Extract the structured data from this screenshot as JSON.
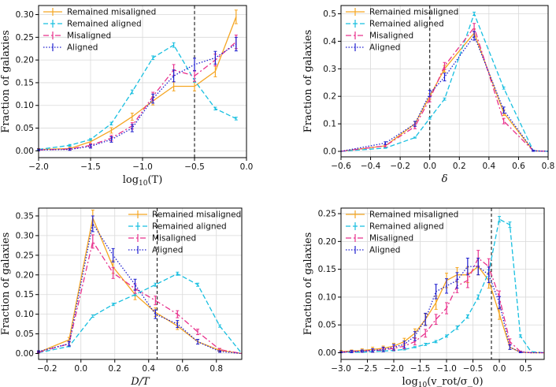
{
  "figure_colors": {
    "remained_misaligned": "#f5a623",
    "remained_aligned": "#17bfe0",
    "misaligned": "#e8308c",
    "aligned": "#1f1fcf",
    "vline": "#000000",
    "grid": "#d9d9d9"
  },
  "chart_data": [
    {
      "type": "line",
      "panel": "top-left",
      "xlabel_main": "log",
      "xlabel_sub": "10",
      "xlabel_rest": "(T)",
      "ylabel": "Fraction of galaxies",
      "xlim": [
        -2.0,
        0.0
      ],
      "ylim": [
        -0.015,
        0.32
      ],
      "xticks": [
        -2.0,
        -1.5,
        -1.0,
        -0.5,
        0.0
      ],
      "xtick_labels": [
        "−2.0",
        "−1.5",
        "−1.0",
        "−0.5",
        "0.0"
      ],
      "yticks": [
        0.0,
        0.05,
        0.1,
        0.15,
        0.2,
        0.25,
        0.3
      ],
      "ytick_labels": [
        "0.00",
        "0.05",
        "0.10",
        "0.15",
        "0.20",
        "0.25",
        "0.30"
      ],
      "vline": -0.5,
      "legend_position": "upper-left",
      "series": [
        {
          "name": "Remained misaligned",
          "key": "remained_misaligned",
          "style": "solid",
          "x": [
            -2.0,
            -1.7,
            -1.5,
            -1.3,
            -1.1,
            -0.9,
            -0.7,
            -0.5,
            -0.3,
            -0.1
          ],
          "y": [
            0.003,
            0.005,
            0.02,
            0.045,
            0.075,
            0.11,
            0.142,
            0.142,
            0.175,
            0.295
          ],
          "err": [
            0.002,
            0.003,
            0.004,
            0.006,
            0.008,
            0.009,
            0.01,
            0.01,
            0.012,
            0.015
          ]
        },
        {
          "name": "Remained aligned",
          "key": "remained_aligned",
          "style": "dashed",
          "x": [
            -2.0,
            -1.7,
            -1.5,
            -1.3,
            -1.1,
            -0.9,
            -0.7,
            -0.5,
            -0.3,
            -0.1
          ],
          "y": [
            0.003,
            0.012,
            0.025,
            0.06,
            0.13,
            0.205,
            0.233,
            0.155,
            0.093,
            0.071
          ],
          "err": [
            0.001,
            0.002,
            0.002,
            0.003,
            0.004,
            0.004,
            0.005,
            0.004,
            0.003,
            0.003
          ]
        },
        {
          "name": "Misaligned",
          "key": "misaligned",
          "style": "dashdot",
          "x": [
            -2.0,
            -1.7,
            -1.5,
            -1.3,
            -1.1,
            -0.9,
            -0.7,
            -0.5,
            -0.3,
            -0.1
          ],
          "y": [
            0.002,
            0.004,
            0.012,
            0.028,
            0.055,
            0.12,
            0.178,
            0.165,
            0.2,
            0.24
          ],
          "err": [
            0.002,
            0.002,
            0.004,
            0.006,
            0.007,
            0.009,
            0.012,
            0.012,
            0.013,
            0.015
          ]
        },
        {
          "name": "Aligned",
          "key": "aligned",
          "style": "dotted",
          "x": [
            -2.0,
            -1.7,
            -1.5,
            -1.3,
            -1.1,
            -0.9,
            -0.7,
            -0.5,
            -0.3,
            -0.1
          ],
          "y": [
            0.002,
            0.003,
            0.01,
            0.025,
            0.05,
            0.115,
            0.165,
            0.19,
            0.205,
            0.235
          ],
          "err": [
            0.002,
            0.002,
            0.004,
            0.006,
            0.008,
            0.01,
            0.013,
            0.014,
            0.014,
            0.015
          ]
        }
      ]
    },
    {
      "type": "line",
      "panel": "top-right",
      "xlabel_main": "δ",
      "xlabel_sub": "",
      "xlabel_rest": "",
      "ylabel": "Fraction of galaxies",
      "xlim": [
        -0.6,
        0.8
      ],
      "ylim": [
        -0.02,
        0.53
      ],
      "xticks": [
        -0.6,
        -0.4,
        -0.2,
        0.0,
        0.2,
        0.4,
        0.6,
        0.8
      ],
      "xtick_labels": [
        "−0.6",
        "−0.4",
        "−0.2",
        "0.0",
        "0.2",
        "0.4",
        "0.6",
        "0.8"
      ],
      "yticks": [
        0.0,
        0.1,
        0.2,
        0.3,
        0.4,
        0.5
      ],
      "ytick_labels": [
        "0.0",
        "0.1",
        "0.2",
        "0.3",
        "0.4",
        "0.5"
      ],
      "vline": 0.0,
      "legend_position": "upper-left",
      "series": [
        {
          "name": "Remained misaligned",
          "key": "remained_misaligned",
          "style": "solid",
          "x": [
            -0.6,
            -0.3,
            -0.1,
            0.0,
            0.1,
            0.3,
            0.5,
            0.7,
            0.8
          ],
          "y": [
            0.0,
            0.02,
            0.1,
            0.2,
            0.3,
            0.43,
            0.14,
            0.002,
            0.0
          ],
          "err": [
            0.0,
            0.004,
            0.008,
            0.01,
            0.012,
            0.015,
            0.01,
            0.002,
            0.0
          ]
        },
        {
          "name": "Remained aligned",
          "key": "remained_aligned",
          "style": "dashed",
          "x": [
            -0.6,
            -0.3,
            -0.1,
            0.0,
            0.1,
            0.3,
            0.5,
            0.7,
            0.8
          ],
          "y": [
            0.0,
            0.012,
            0.05,
            0.12,
            0.19,
            0.5,
            0.23,
            0.002,
            0.0
          ],
          "err": [
            0.0,
            0.001,
            0.002,
            0.003,
            0.004,
            0.006,
            0.004,
            0.001,
            0.0
          ]
        },
        {
          "name": "Misaligned",
          "key": "misaligned",
          "style": "dashdot",
          "x": [
            -0.6,
            -0.3,
            -0.1,
            0.0,
            0.1,
            0.3,
            0.5,
            0.7,
            0.8
          ],
          "y": [
            0.0,
            0.02,
            0.09,
            0.19,
            0.31,
            0.45,
            0.11,
            0.002,
            0.0
          ],
          "err": [
            0.0,
            0.004,
            0.008,
            0.01,
            0.013,
            0.015,
            0.01,
            0.002,
            0.0
          ]
        },
        {
          "name": "Aligned",
          "key": "aligned",
          "style": "dotted",
          "x": [
            -0.6,
            -0.3,
            -0.1,
            0.0,
            0.1,
            0.3,
            0.5,
            0.7,
            0.8
          ],
          "y": [
            0.0,
            0.03,
            0.1,
            0.21,
            0.27,
            0.42,
            0.15,
            0.002,
            0.0
          ],
          "err": [
            0.0,
            0.005,
            0.009,
            0.012,
            0.014,
            0.016,
            0.011,
            0.002,
            0.0
          ]
        }
      ]
    },
    {
      "type": "line",
      "panel": "bottom-left",
      "xlabel_main": "D/T",
      "xlabel_sub": "",
      "xlabel_rest": "",
      "ylabel": "Fraction of galaxies",
      "xlim": [
        -0.25,
        0.95
      ],
      "ylim": [
        -0.015,
        0.37
      ],
      "xticks": [
        -0.2,
        0.0,
        0.2,
        0.4,
        0.6,
        0.8
      ],
      "xtick_labels": [
        "−0.2",
        "0.0",
        "0.2",
        "0.4",
        "0.6",
        "0.8"
      ],
      "yticks": [
        0.0,
        0.05,
        0.1,
        0.15,
        0.2,
        0.25,
        0.3,
        0.35
      ],
      "ytick_labels": [
        "0.00",
        "0.05",
        "0.10",
        "0.15",
        "0.20",
        "0.25",
        "0.30",
        "0.35"
      ],
      "vline": 0.45,
      "legend_position": "upper-right",
      "series": [
        {
          "name": "Remained misaligned",
          "key": "remained_misaligned",
          "style": "solid",
          "x": [
            -0.25,
            -0.07,
            0.07,
            0.19,
            0.32,
            0.44,
            0.57,
            0.69,
            0.82,
            0.95
          ],
          "y": [
            0.003,
            0.035,
            0.345,
            0.22,
            0.15,
            0.105,
            0.07,
            0.03,
            0.008,
            0.0
          ],
          "err": [
            0.002,
            0.006,
            0.02,
            0.016,
            0.013,
            0.011,
            0.009,
            0.006,
            0.003,
            0.0
          ]
        },
        {
          "name": "Remained aligned",
          "key": "remained_aligned",
          "style": "dashed",
          "x": [
            -0.25,
            -0.07,
            0.07,
            0.19,
            0.32,
            0.44,
            0.57,
            0.69,
            0.82,
            0.95
          ],
          "y": [
            0.002,
            0.018,
            0.095,
            0.125,
            0.15,
            0.175,
            0.203,
            0.175,
            0.07,
            0.0
          ],
          "err": [
            0.001,
            0.001,
            0.003,
            0.003,
            0.003,
            0.004,
            0.004,
            0.004,
            0.003,
            0.0
          ]
        },
        {
          "name": "Misaligned",
          "key": "misaligned",
          "style": "dashdot",
          "x": [
            -0.25,
            -0.07,
            0.07,
            0.19,
            0.32,
            0.44,
            0.57,
            0.69,
            0.82,
            0.95
          ],
          "y": [
            0.003,
            0.025,
            0.285,
            0.205,
            0.165,
            0.135,
            0.1,
            0.055,
            0.01,
            0.0
          ],
          "err": [
            0.002,
            0.005,
            0.017,
            0.014,
            0.012,
            0.011,
            0.009,
            0.007,
            0.003,
            0.0
          ]
        },
        {
          "name": "Aligned",
          "key": "aligned",
          "style": "dotted",
          "x": [
            -0.25,
            -0.07,
            0.07,
            0.19,
            0.32,
            0.44,
            0.57,
            0.69,
            0.82,
            0.95
          ],
          "y": [
            0.005,
            0.025,
            0.33,
            0.25,
            0.175,
            0.1,
            0.075,
            0.03,
            0.005,
            0.0
          ],
          "err": [
            0.002,
            0.006,
            0.02,
            0.017,
            0.014,
            0.011,
            0.009,
            0.006,
            0.002,
            0.0
          ]
        }
      ]
    },
    {
      "type": "line",
      "panel": "bottom-right",
      "xlabel_main": "log",
      "xlabel_sub": "10",
      "xlabel_rest": "(v_rot/σ_0)",
      "ylabel": "Fraction of galaxies",
      "xlim": [
        -3.0,
        0.85
      ],
      "ylim": [
        -0.012,
        0.26
      ],
      "xticks": [
        -3.0,
        -2.5,
        -2.0,
        -1.5,
        -1.0,
        -0.5,
        0.0,
        0.5
      ],
      "xtick_labels": [
        "−3.0",
        "−2.5",
        "−2.0",
        "−1.5",
        "−1.0",
        "−0.5",
        "0.0",
        "0.5"
      ],
      "yticks": [
        0.0,
        0.05,
        0.1,
        0.15,
        0.2,
        0.25
      ],
      "ytick_labels": [
        "0.00",
        "0.05",
        "0.10",
        "0.15",
        "0.20",
        "0.25"
      ],
      "vline": -0.15,
      "legend_position": "upper-left",
      "series": [
        {
          "name": "Remained misaligned",
          "key": "remained_misaligned",
          "style": "solid",
          "x": [
            -3.0,
            -2.8,
            -2.6,
            -2.4,
            -2.2,
            -2.0,
            -1.8,
            -1.6,
            -1.4,
            -1.2,
            -1.0,
            -0.8,
            -0.6,
            -0.4,
            -0.2,
            0.0,
            0.2,
            0.4,
            0.6,
            0.85
          ],
          "y": [
            0.002,
            0.003,
            0.004,
            0.006,
            0.008,
            0.012,
            0.02,
            0.035,
            0.06,
            0.09,
            0.13,
            0.14,
            0.14,
            0.155,
            0.13,
            0.07,
            0.01,
            0.001,
            0.0,
            0.0
          ],
          "err": [
            0.002,
            0.002,
            0.003,
            0.004,
            0.004,
            0.005,
            0.006,
            0.008,
            0.01,
            0.012,
            0.013,
            0.013,
            0.014,
            0.015,
            0.014,
            0.01,
            0.004,
            0.001,
            0.0,
            0.0
          ]
        },
        {
          "name": "Remained aligned",
          "key": "remained_aligned",
          "style": "dashed",
          "x": [
            -3.0,
            -2.8,
            -2.6,
            -2.4,
            -2.2,
            -2.0,
            -1.8,
            -1.6,
            -1.4,
            -1.2,
            -1.0,
            -0.8,
            -0.6,
            -0.4,
            -0.2,
            0.0,
            0.2,
            0.4,
            0.6,
            0.85
          ],
          "y": [
            0.001,
            0.001,
            0.001,
            0.002,
            0.003,
            0.004,
            0.006,
            0.01,
            0.015,
            0.02,
            0.03,
            0.045,
            0.065,
            0.1,
            0.145,
            0.24,
            0.23,
            0.03,
            0.002,
            0.0
          ],
          "err": [
            0.0,
            0.0,
            0.0,
            0.0,
            0.001,
            0.001,
            0.001,
            0.001,
            0.002,
            0.002,
            0.002,
            0.003,
            0.003,
            0.004,
            0.004,
            0.005,
            0.005,
            0.002,
            0.0,
            0.0
          ]
        },
        {
          "name": "Misaligned",
          "key": "misaligned",
          "style": "dashdot",
          "x": [
            -3.0,
            -2.8,
            -2.6,
            -2.4,
            -2.2,
            -2.0,
            -1.8,
            -1.6,
            -1.4,
            -1.2,
            -1.0,
            -0.8,
            -0.6,
            -0.4,
            -0.2,
            0.0,
            0.2,
            0.4,
            0.6,
            0.85
          ],
          "y": [
            0.001,
            0.002,
            0.003,
            0.004,
            0.005,
            0.008,
            0.012,
            0.02,
            0.035,
            0.06,
            0.08,
            0.12,
            0.13,
            0.17,
            0.155,
            0.1,
            0.02,
            0.002,
            0.0,
            0.0
          ],
          "err": [
            0.001,
            0.002,
            0.002,
            0.003,
            0.003,
            0.004,
            0.005,
            0.006,
            0.007,
            0.009,
            0.01,
            0.012,
            0.013,
            0.014,
            0.014,
            0.011,
            0.005,
            0.001,
            0.0,
            0.0
          ]
        },
        {
          "name": "Aligned",
          "key": "aligned",
          "style": "dotted",
          "x": [
            -3.0,
            -2.8,
            -2.6,
            -2.4,
            -2.2,
            -2.0,
            -1.8,
            -1.6,
            -1.4,
            -1.2,
            -1.0,
            -0.8,
            -0.6,
            -0.4,
            -0.2,
            0.0,
            0.2,
            0.4,
            0.6,
            0.85
          ],
          "y": [
            0.001,
            0.002,
            0.003,
            0.004,
            0.006,
            0.01,
            0.015,
            0.03,
            0.06,
            0.11,
            0.12,
            0.13,
            0.155,
            0.155,
            0.14,
            0.09,
            0.01,
            0.001,
            0.0,
            0.0
          ],
          "err": [
            0.001,
            0.002,
            0.002,
            0.003,
            0.004,
            0.005,
            0.006,
            0.008,
            0.011,
            0.013,
            0.013,
            0.014,
            0.015,
            0.015,
            0.014,
            0.011,
            0.004,
            0.001,
            0.0,
            0.0
          ]
        }
      ]
    }
  ]
}
